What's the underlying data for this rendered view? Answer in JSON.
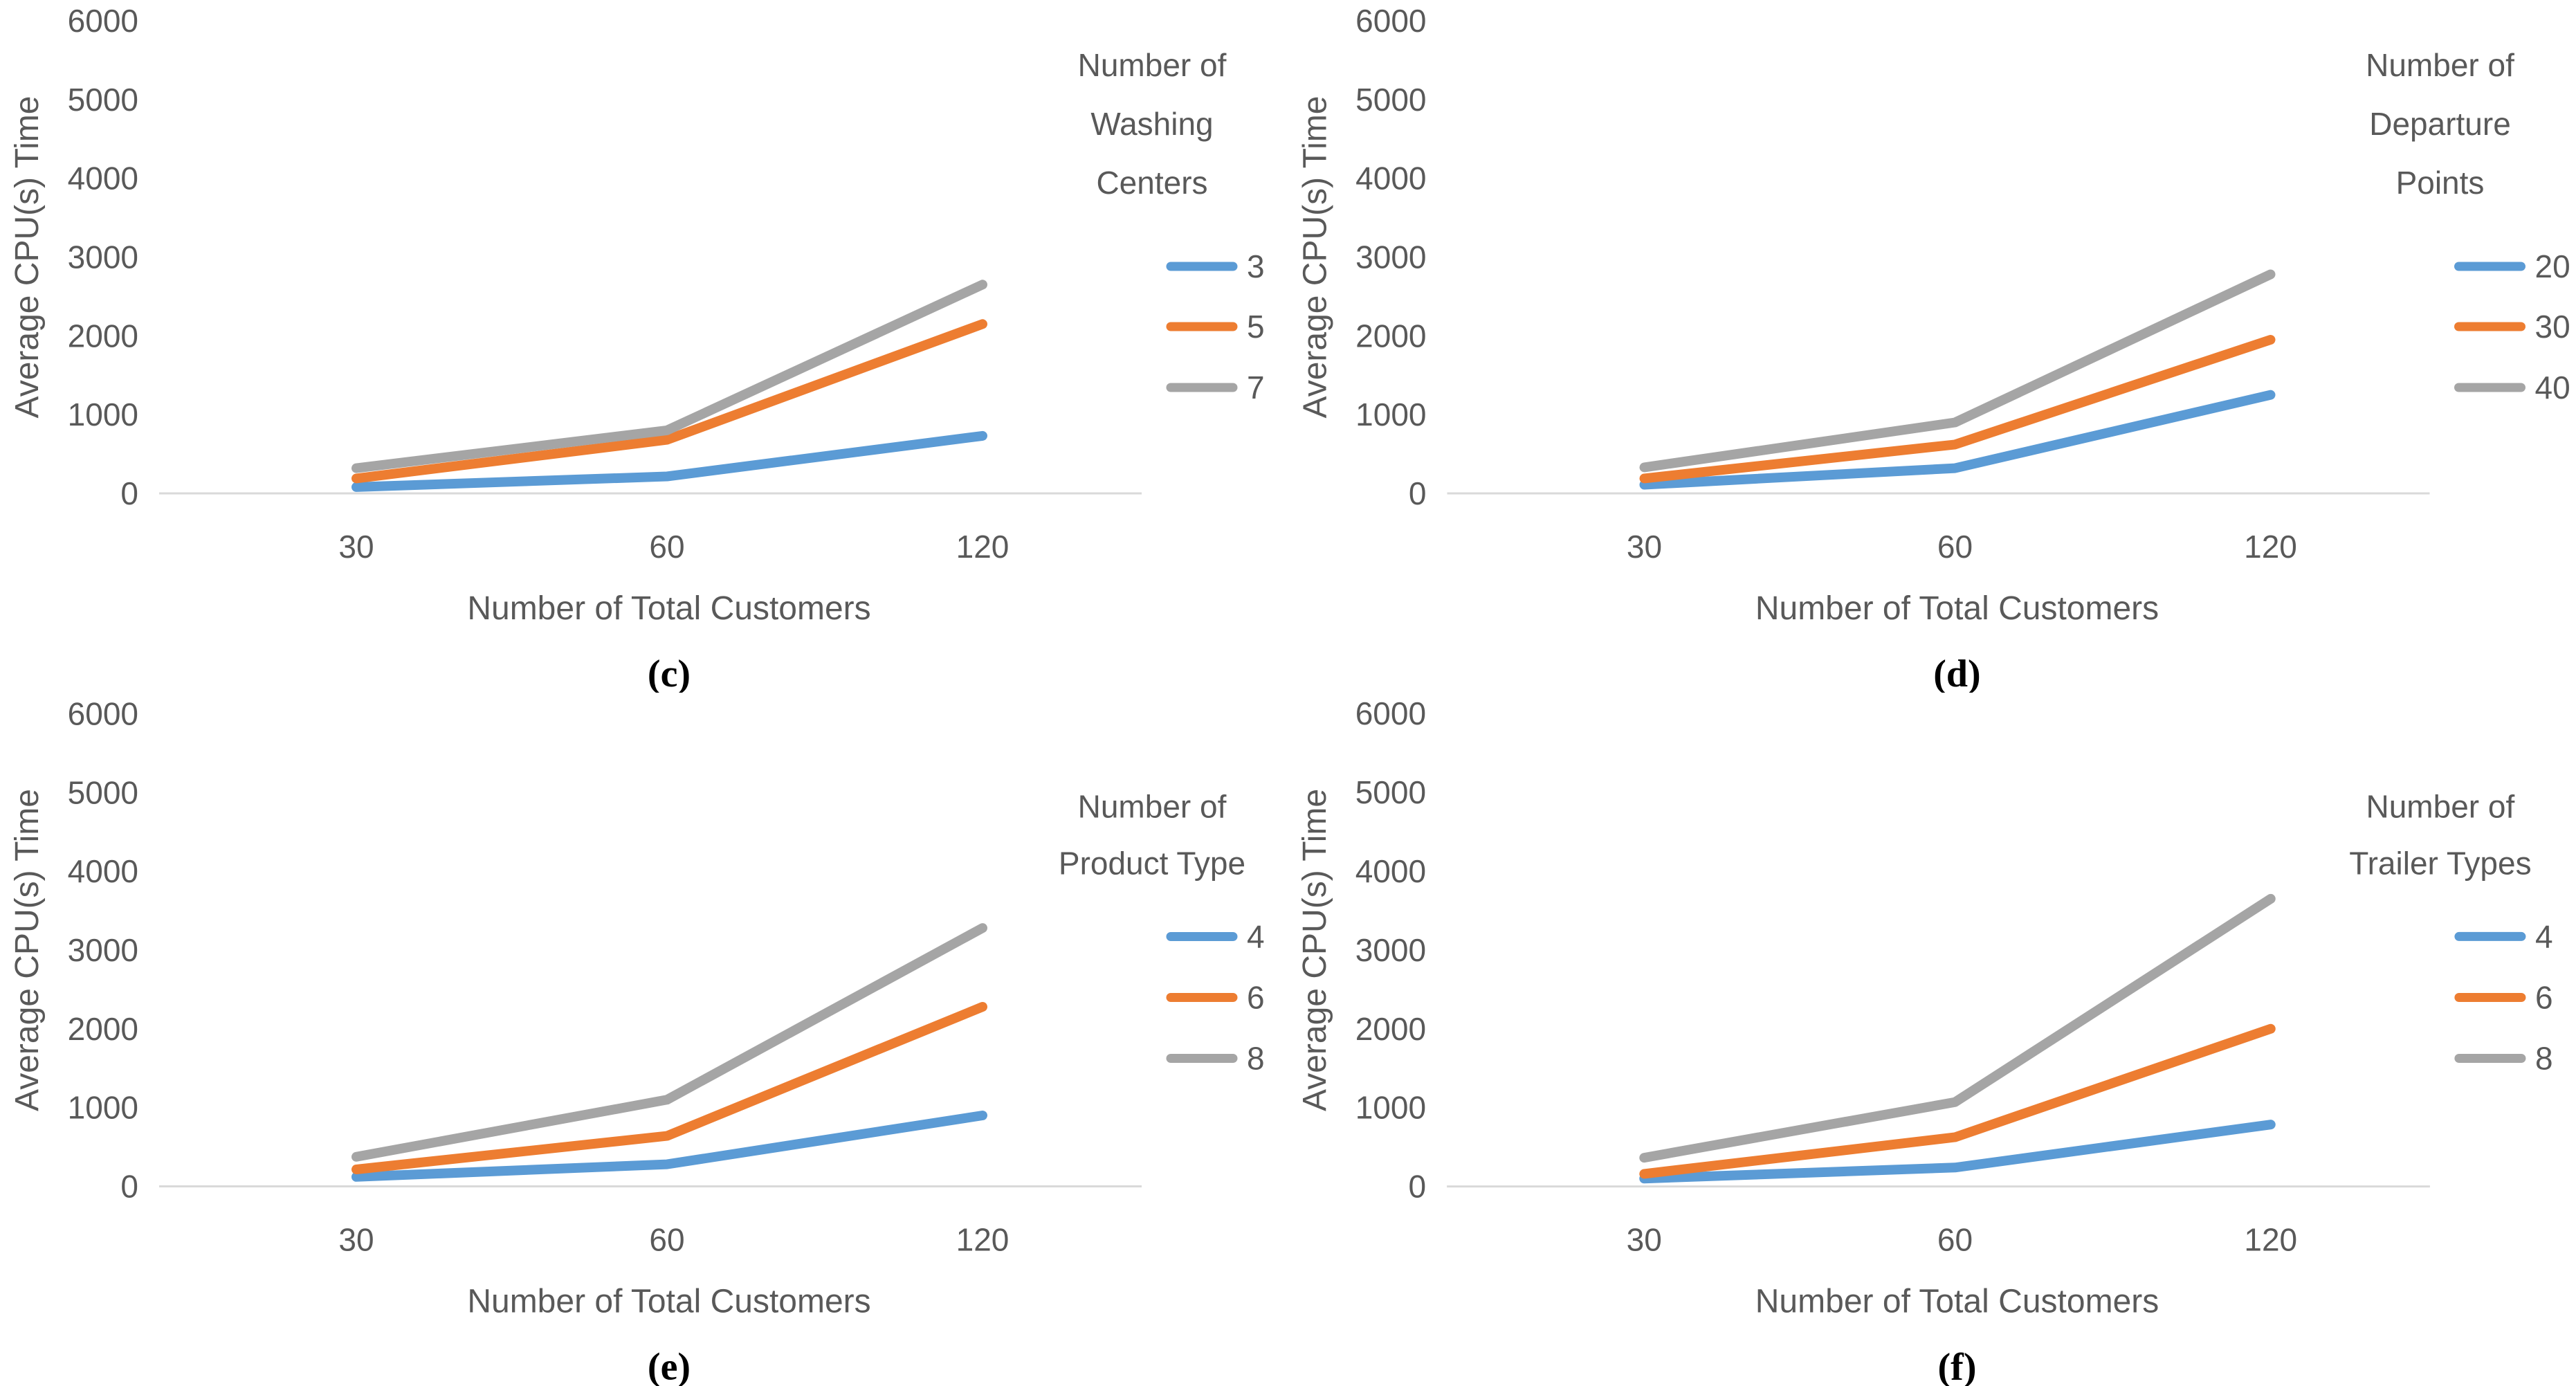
{
  "figure_title": "",
  "palette": {
    "series_blue": "#5B9BD5",
    "series_orange": "#ED7D31",
    "series_gray": "#A5A5A5",
    "axis_text": "#595959",
    "axis_line": "#D9D9D9",
    "caption_text": "#000000"
  },
  "chart_data": [
    {
      "id": "c",
      "type": "line",
      "caption": "(c)",
      "ylabel": "Average CPU(s) Time",
      "xlabel": "Number of Total Customers",
      "categories": [
        "30",
        "60",
        "120"
      ],
      "x_numeric": [
        30,
        60,
        120
      ],
      "yticks": [
        "0",
        "1000",
        "2000",
        "3000",
        "4000",
        "5000",
        "6000"
      ],
      "ylim": [
        0,
        6000
      ],
      "grid": "off",
      "legend_position": "right",
      "legend_title_lines": [
        "Number of",
        "Washing",
        "Centers"
      ],
      "series": [
        {
          "name": "3",
          "color": "#5B9BD5",
          "values": [
            80,
            215,
            730
          ]
        },
        {
          "name": "5",
          "color": "#ED7D31",
          "values": [
            190,
            680,
            2150
          ]
        },
        {
          "name": "7",
          "color": "#A5A5A5",
          "values": [
            320,
            800,
            2650
          ]
        }
      ]
    },
    {
      "id": "d",
      "type": "line",
      "caption": "(d)",
      "ylabel": "Average CPU(s) Time",
      "xlabel": "Number of Total Customers",
      "categories": [
        "30",
        "60",
        "120"
      ],
      "x_numeric": [
        30,
        60,
        120
      ],
      "yticks": [
        "0",
        "1000",
        "2000",
        "3000",
        "4000",
        "5000",
        "6000"
      ],
      "ylim": [
        0,
        6000
      ],
      "grid": "off",
      "legend_position": "right",
      "legend_title_lines": [
        "Number of",
        "Departure",
        "Points"
      ],
      "series": [
        {
          "name": "20",
          "color": "#5B9BD5",
          "values": [
            110,
            320,
            1250
          ]
        },
        {
          "name": "30",
          "color": "#ED7D31",
          "values": [
            190,
            620,
            1950
          ]
        },
        {
          "name": "40",
          "color": "#A5A5A5",
          "values": [
            330,
            900,
            2780
          ]
        }
      ]
    },
    {
      "id": "e",
      "type": "line",
      "caption": "(e)",
      "ylabel": "Average CPU(s) Time",
      "xlabel": "Number of Total Customers",
      "categories": [
        "30",
        "60",
        "120"
      ],
      "x_numeric": [
        30,
        60,
        120
      ],
      "yticks": [
        "0",
        "1000",
        "2000",
        "3000",
        "4000",
        "5000",
        "6000"
      ],
      "ylim": [
        0,
        6000
      ],
      "grid": "off",
      "legend_position": "right",
      "legend_title_lines": [
        "Number of",
        "Product Type"
      ],
      "series": [
        {
          "name": "4",
          "color": "#5B9BD5",
          "values": [
            120,
            280,
            900
          ]
        },
        {
          "name": "6",
          "color": "#ED7D31",
          "values": [
            215,
            640,
            2280
          ]
        },
        {
          "name": "8",
          "color": "#A5A5A5",
          "values": [
            375,
            1100,
            3280
          ]
        }
      ]
    },
    {
      "id": "f",
      "type": "line",
      "caption": "(f)",
      "ylabel": "Average CPU(s) Time",
      "xlabel": "Number of Total Customers",
      "categories": [
        "30",
        "60",
        "120"
      ],
      "x_numeric": [
        30,
        60,
        120
      ],
      "yticks": [
        "0",
        "1000",
        "2000",
        "3000",
        "4000",
        "5000",
        "6000"
      ],
      "ylim": [
        0,
        6000
      ],
      "grid": "off",
      "legend_position": "right",
      "legend_title_lines": [
        "Number of",
        "Trailer Types"
      ],
      "series": [
        {
          "name": "4",
          "color": "#5B9BD5",
          "values": [
            100,
            240,
            785
          ]
        },
        {
          "name": "6",
          "color": "#ED7D31",
          "values": [
            160,
            625,
            2000
          ]
        },
        {
          "name": "8",
          "color": "#A5A5A5",
          "values": [
            365,
            1070,
            3650
          ]
        }
      ]
    }
  ]
}
